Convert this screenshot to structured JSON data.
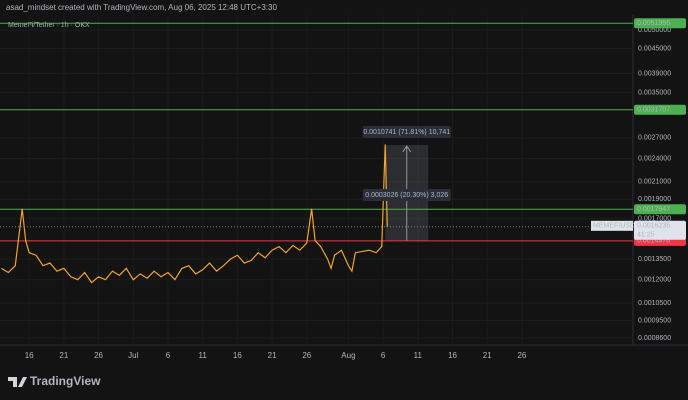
{
  "header": {
    "credit": "asad_mindset created with TradingView.com, Aug 06, 2025 12:48 UTC+3:30",
    "brand": "TradingView"
  },
  "chart_data": {
    "type": "line",
    "subtitle": "MemeFi/Tether · 1h · OKX",
    "log_scale": true,
    "xlim": [
      11.8,
      103
    ],
    "ylim": [
      0.000826,
      0.00545
    ],
    "xticks": [
      {
        "value": 16,
        "label": "16"
      },
      {
        "value": 21,
        "label": "21"
      },
      {
        "value": 26,
        "label": "26"
      },
      {
        "value": 31,
        "label": "Jul"
      },
      {
        "value": 36,
        "label": "6"
      },
      {
        "value": 41,
        "label": "11"
      },
      {
        "value": 46,
        "label": "16"
      },
      {
        "value": 51,
        "label": "21"
      },
      {
        "value": 56,
        "label": "26"
      },
      {
        "value": 62,
        "label": "Aug"
      },
      {
        "value": 67,
        "label": "6"
      },
      {
        "value": 72,
        "label": "11"
      },
      {
        "value": 77,
        "label": "16"
      },
      {
        "value": 82,
        "label": "21"
      },
      {
        "value": 87,
        "label": "26"
      }
    ],
    "yticks": [
      {
        "value": 0.005,
        "label": "0.0050000"
      },
      {
        "value": 0.0045,
        "label": "0.0045000"
      },
      {
        "value": 0.0039,
        "label": "0.0039000"
      },
      {
        "value": 0.0035,
        "label": "0.0035000"
      },
      {
        "value": 0.0027,
        "label": "0.0027000"
      },
      {
        "value": 0.0024,
        "label": "0.0024000"
      },
      {
        "value": 0.0021,
        "label": "0.0021000"
      },
      {
        "value": 0.0019,
        "label": "0.0019000"
      },
      {
        "value": 0.0017,
        "label": "0.0017000"
      },
      {
        "value": 0.00135,
        "label": "0.0013500"
      },
      {
        "value": 0.0012,
        "label": "0.0012000"
      },
      {
        "value": 0.00105,
        "label": "0.0010500"
      },
      {
        "value": 0.00095,
        "label": "0.0009500"
      },
      {
        "value": 0.00086,
        "label": "0.0008600"
      }
    ],
    "series": [
      {
        "color": "#f0a32e",
        "x": [
          12,
          13,
          14,
          15,
          15.5,
          16,
          17,
          18,
          19,
          20,
          21,
          22,
          23,
          24,
          25,
          26,
          27,
          28,
          29,
          30,
          31,
          32,
          33,
          34,
          35,
          36,
          37,
          38,
          39,
          40,
          41,
          42,
          43,
          44,
          45,
          46,
          47,
          48,
          49,
          50,
          51,
          52,
          53,
          54,
          55,
          56,
          56.7,
          57.2,
          58,
          59,
          59.5,
          60,
          61,
          62,
          62.5,
          63,
          64,
          65,
          66,
          66.8,
          67.3,
          67.6
        ],
        "values": [
          0.00128,
          0.00125,
          0.0013,
          0.0018,
          0.0015,
          0.0014,
          0.00138,
          0.0013,
          0.00132,
          0.00126,
          0.00128,
          0.00122,
          0.0012,
          0.00125,
          0.00118,
          0.00122,
          0.0012,
          0.00126,
          0.00123,
          0.00128,
          0.0012,
          0.00124,
          0.00121,
          0.00126,
          0.00122,
          0.00125,
          0.0012,
          0.00128,
          0.0013,
          0.00124,
          0.00127,
          0.00132,
          0.00126,
          0.0013,
          0.00135,
          0.00138,
          0.00132,
          0.00134,
          0.0014,
          0.00136,
          0.00142,
          0.00145,
          0.0014,
          0.00146,
          0.00142,
          0.00148,
          0.0018,
          0.0015,
          0.00145,
          0.00135,
          0.00128,
          0.00138,
          0.00142,
          0.0013,
          0.00126,
          0.0014,
          0.00141,
          0.00142,
          0.0014,
          0.00145,
          0.0026,
          0.0016235
        ]
      }
    ],
    "levels": [
      {
        "value": 0.0051996,
        "label": "0.0051996",
        "color": "#4caf50"
      },
      {
        "value": 0.0031707,
        "label": "0.0031707",
        "color": "#4caf50"
      },
      {
        "value": 0.0017947,
        "label": "0.0017947",
        "color": "#4caf50"
      },
      {
        "value": 0.0014978,
        "label": "0.0014978",
        "color": "#f23645"
      }
    ],
    "current": {
      "symbol": "MEMEFIUSDT",
      "value": 0.0016235,
      "label": "0.0016235",
      "countdown": "41:25"
    },
    "annotations": [
      "0.0010741 (71.81%) 10,741",
      "0.0003026 (20.30%) 3,026"
    ]
  }
}
